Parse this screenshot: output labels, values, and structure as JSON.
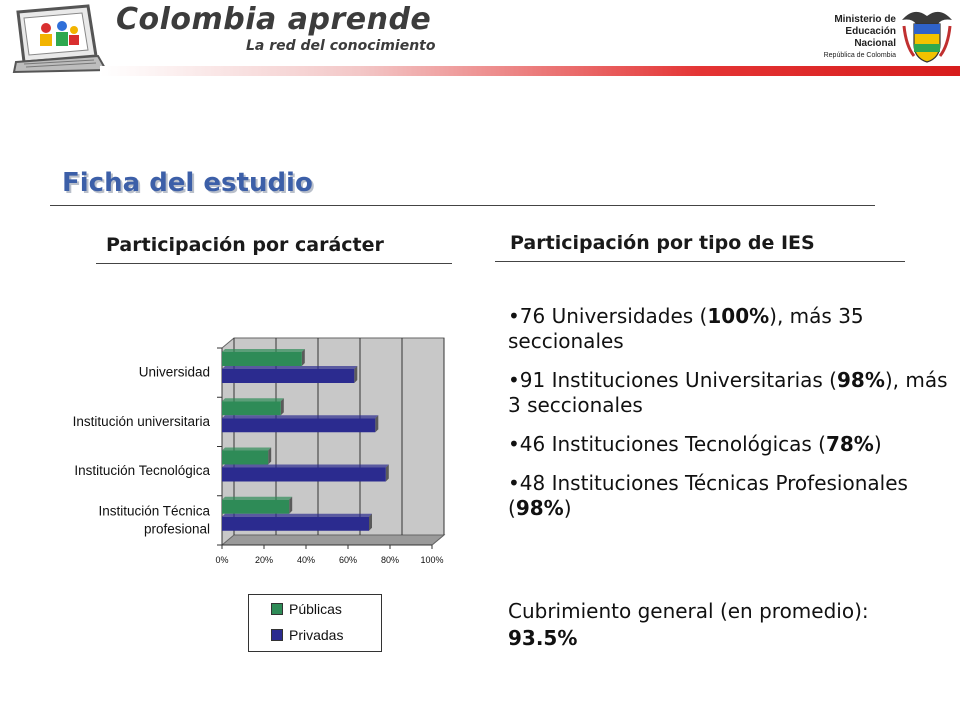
{
  "header": {
    "brand_title": "Colombia aprende",
    "brand_subtitle": "La red del conocimiento",
    "ministry_lines": [
      "Ministerio de",
      "Educación",
      "Nacional"
    ],
    "ministry_country": "República de Colombia"
  },
  "slide": {
    "title": "Ficha del estudio",
    "left_heading": "Participación por carácter",
    "right_heading": "Participación por tipo de IES"
  },
  "bullets": [
    {
      "pre": "•76 Universidades (",
      "bold": "100%",
      "post": "), más 35 seccionales"
    },
    {
      "pre": "•91 Instituciones Universitarias (",
      "bold": "98%",
      "post": "), más 3 seccionales"
    },
    {
      "pre": "•46 Instituciones Tecnológicas (",
      "bold": "78%",
      "post": ")"
    },
    {
      "pre": "•48 Instituciones Técnicas Profesionales (",
      "bold": "98%",
      "post": ")"
    }
  ],
  "coverage": {
    "label": "Cubrimiento general (en promedio):",
    "value": "93.5%"
  },
  "chart_data": {
    "type": "bar",
    "orientation": "horizontal",
    "categories": [
      "Universidad",
      "Institución universitaria",
      "Institución Tecnológica",
      "Institución Técnica profesional"
    ],
    "category_lines": [
      [
        "Universidad"
      ],
      [
        "Institución universitaria"
      ],
      [
        "Institución Tecnológica"
      ],
      [
        "Institución Técnica",
        "profesional"
      ]
    ],
    "series": [
      {
        "name": "Públicas",
        "values": [
          38,
          28,
          22,
          32
        ],
        "color": "#2e8b57"
      },
      {
        "name": "Privadas",
        "values": [
          63,
          73,
          78,
          70
        ],
        "color": "#2b2b8f"
      }
    ],
    "xlim": [
      0,
      100
    ],
    "xticks": [
      "0%",
      "20%",
      "40%",
      "60%",
      "80%",
      "100%"
    ],
    "grid": true,
    "legend": "bottom",
    "plot_background": "#c8c8c8"
  }
}
